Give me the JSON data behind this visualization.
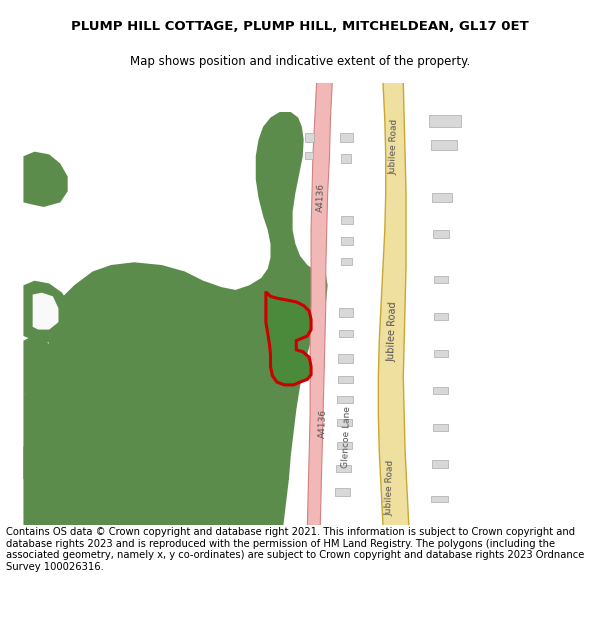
{
  "title_line1": "PLUMP HILL COTTAGE, PLUMP HILL, MITCHELDEAN, GL17 0ET",
  "title_line2": "Map shows position and indicative extent of the property.",
  "title_fontsize": 9.5,
  "subtitle_fontsize": 8.5,
  "footer_text": "Contains OS data © Crown copyright and database right 2021. This information is subject to Crown copyright and database rights 2023 and is reproduced with the permission of HM Land Registry. The polygons (including the associated geometry, namely x, y co-ordinates) are subject to Crown copyright and database rights 2023 Ordnance Survey 100026316.",
  "footer_fontsize": 7.2,
  "background_color": "#ffffff",
  "map_bg_color": "#f9f9f9",
  "green_color": "#5c8c4c",
  "road_a4136_color": "#f2b8b8",
  "road_a4136_border": "#d08080",
  "road_jubilee_color": "#f0e0a0",
  "road_jubilee_border": "#c8a830",
  "building_color": "#d8d8d8",
  "building_edge_color": "#aaaaaa",
  "plot_fill_color": "#4a8a3a",
  "plot_edge_color": "#cc0000",
  "plot_edge_width": 2.2,
  "label_color": "#555555",
  "label_fontsize": 6.5
}
